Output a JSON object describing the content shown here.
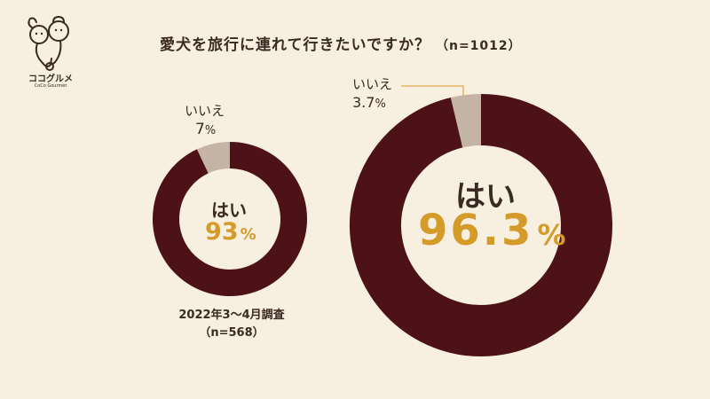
{
  "brand": {
    "name": "ココグルメ",
    "sub": "CoCo Gourmet"
  },
  "title": "愛犬を旅行に連れて行きたいですか？",
  "title_n": "（n=1012）",
  "colors": {
    "yes": "#4c1218",
    "no": "#c4b4a6",
    "accent": "#d59b2a",
    "background": "#f7efdf"
  },
  "chart_data": [
    {
      "type": "pie",
      "categories": [
        "はい",
        "いいえ"
      ],
      "values": [
        93,
        7
      ],
      "unit": "%",
      "yes_label": "はい",
      "yes_value": "93",
      "no_label": "いいえ",
      "no_value": "7",
      "period": "2022年3〜4月調査",
      "sample": "（n=568）"
    },
    {
      "type": "pie",
      "categories": [
        "はい",
        "いいえ"
      ],
      "values": [
        96.3,
        3.7
      ],
      "unit": "%",
      "yes_label": "はい",
      "yes_value": "96.3",
      "no_label": "いいえ",
      "no_value": "3.7"
    }
  ]
}
